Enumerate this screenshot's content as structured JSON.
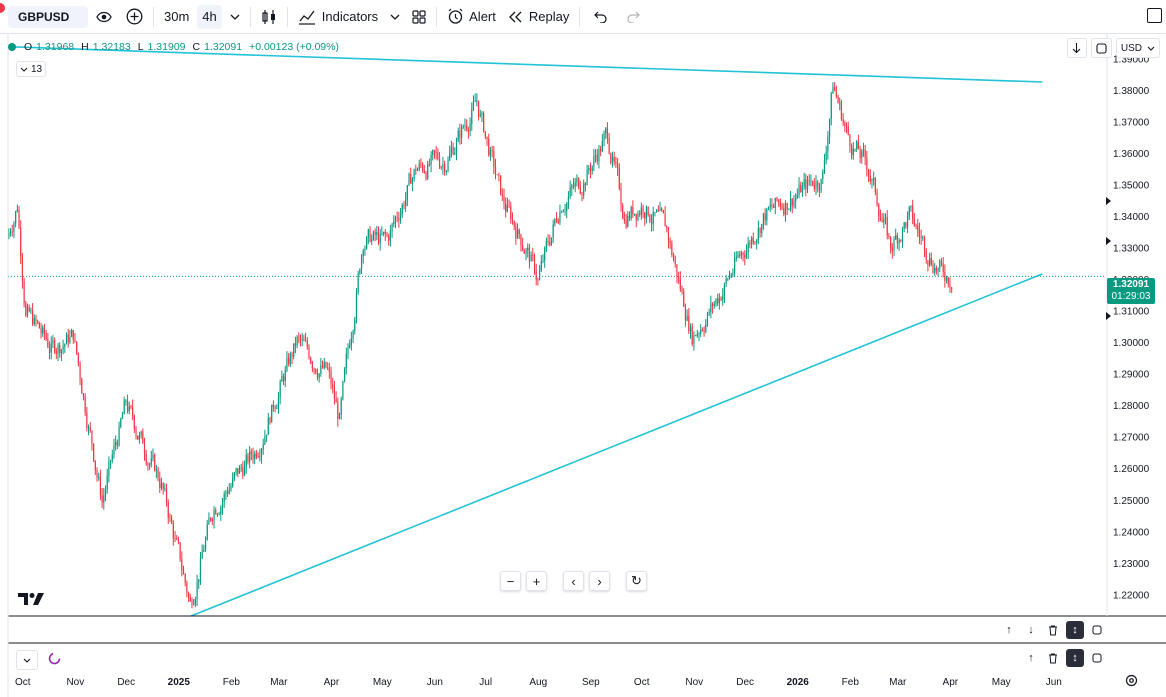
{
  "toolbar": {
    "symbol": "GBPUSD",
    "timeframe_30m": "30m",
    "timeframe_4h": "4h",
    "indicators_label": "Indicators",
    "alert_label": "Alert",
    "replay_label": "Replay"
  },
  "legend": {
    "open_label": "O",
    "open": "1.31968",
    "high_label": "H",
    "high": "1.32183",
    "low_label": "L",
    "low": "1.31909",
    "close_label": "C",
    "close": "1.32091",
    "change": "+0.00123 (+0.09%)"
  },
  "indicator_count": "13",
  "currency": "USD",
  "price_tag": {
    "price": "1.32091",
    "countdown": "01:29:03"
  },
  "colors": {
    "up": "#089981",
    "down": "#f23645",
    "trendline": "#22c3d6",
    "accent": "#089981"
  },
  "chart_data": {
    "type": "candlestick",
    "symbol": "GBPUSD",
    "interval": "4h",
    "y_axis_ticks": [
      "1.39000",
      "1.38000",
      "1.37000",
      "1.36000",
      "1.35000",
      "1.34000",
      "1.33000",
      "1.32000",
      "1.31000",
      "1.30000",
      "1.29000",
      "1.28000",
      "1.27000",
      "1.26000",
      "1.25000",
      "1.24000",
      "1.23000",
      "1.22000"
    ],
    "ylim": [
      1.2131,
      1.3953
    ],
    "x_axis_labels": [
      "Oct",
      "Nov",
      "Dec",
      "2025",
      "Feb",
      "Mar",
      "Apr",
      "May",
      "Jun",
      "Jul",
      "Aug",
      "Sep",
      "Oct",
      "Nov",
      "Dec",
      "2026",
      "Feb",
      "Mar",
      "Apr",
      "May",
      "Jun"
    ],
    "price_path": [
      [
        "2024-09-27",
        1.333
      ],
      [
        "2024-10-03",
        1.344
      ],
      [
        "2024-10-08",
        1.31
      ],
      [
        "2024-10-23",
        1.298
      ],
      [
        "2024-11-05",
        1.302
      ],
      [
        "2024-11-22",
        1.25
      ],
      [
        "2024-12-06",
        1.28
      ],
      [
        "2024-12-27",
        1.255
      ],
      [
        "2025-01-13",
        1.217
      ],
      [
        "2025-01-27",
        1.248
      ],
      [
        "2025-02-20",
        1.265
      ],
      [
        "2025-03-17",
        1.3
      ],
      [
        "2025-04-04",
        1.29
      ],
      [
        "2025-04-11",
        1.275
      ],
      [
        "2025-04-25",
        1.333
      ],
      [
        "2025-05-09",
        1.332
      ],
      [
        "2025-05-26",
        1.355
      ],
      [
        "2025-06-13",
        1.358
      ],
      [
        "2025-07-01",
        1.376
      ],
      [
        "2025-07-16",
        1.345
      ],
      [
        "2025-07-30",
        1.33
      ],
      [
        "2025-08-06",
        1.32
      ],
      [
        "2025-08-20",
        1.345
      ],
      [
        "2025-09-01",
        1.351
      ],
      [
        "2025-09-16",
        1.366
      ],
      [
        "2025-09-26",
        1.34
      ],
      [
        "2025-10-07",
        1.344
      ],
      [
        "2025-10-21",
        1.335
      ],
      [
        "2025-11-05",
        1.302
      ],
      [
        "2025-11-18",
        1.312
      ],
      [
        "2025-12-01",
        1.325
      ],
      [
        "2025-12-17",
        1.34
      ],
      [
        "2026-01-05",
        1.347
      ],
      [
        "2026-01-21",
        1.353
      ],
      [
        "2026-01-27",
        1.382
      ],
      [
        "2026-02-05",
        1.365
      ],
      [
        "2026-02-17",
        1.355
      ],
      [
        "2026-03-02",
        1.33
      ],
      [
        "2026-03-13",
        1.34
      ],
      [
        "2026-03-23",
        1.33
      ],
      [
        "2026-04-01",
        1.322
      ],
      [
        "2026-04-06",
        1.321
      ]
    ],
    "trendlines": [
      {
        "name": "upper",
        "from": [
          "2024-09-27",
          1.3938
        ],
        "to": [
          "2026-05-30",
          1.3826
        ]
      },
      {
        "name": "lower",
        "from": [
          "2025-01-13",
          1.2131
        ],
        "to": [
          "2026-05-30",
          1.3217
        ]
      }
    ],
    "current_price": 1.32091
  }
}
